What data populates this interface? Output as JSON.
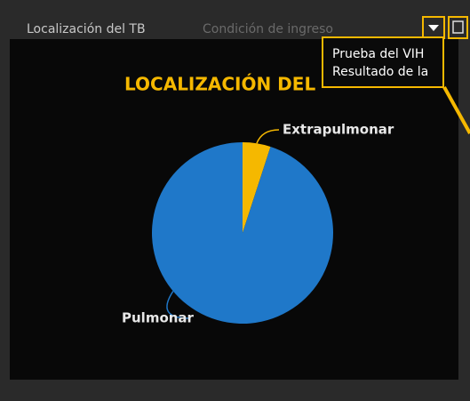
{
  "tabs": [
    "Localización del TB",
    "Condición de ingreso"
  ],
  "tooltip": {
    "lines": [
      "Prueba del VIH",
      "Resultado de la"
    ]
  },
  "chart_data": {
    "type": "pie",
    "title": "LOCALIZACIÓN DEL",
    "categories": [
      "Pulmonar",
      "Extrapulmonar"
    ],
    "values": [
      95,
      5
    ],
    "colors": [
      "#1f78c9",
      "#f5b800"
    ]
  }
}
